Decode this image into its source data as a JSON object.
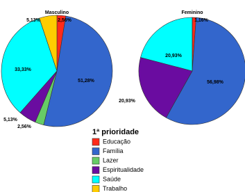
{
  "chart_data": [
    {
      "type": "pie",
      "title": "Masculino",
      "values": [
        2.56,
        51.28,
        2.56,
        5.13,
        33.33,
        5.13
      ],
      "value_labels": [
        "2,56%",
        "51,28%",
        "2,56%",
        "5,13%",
        "33,33%",
        "5,13%"
      ]
    },
    {
      "type": "pie",
      "title": "Feminino",
      "values": [
        1.16,
        56.98,
        0,
        20.93,
        20.93,
        0
      ],
      "value_labels": [
        "1,16%",
        "56,98%",
        null,
        "20,93%",
        "20,93%",
        null
      ]
    }
  ],
  "legend": {
    "title": "1ª prioridade",
    "categories": [
      "Educação",
      "Família",
      "Lazer",
      "Espiritualidade",
      "Saúde",
      "Trabalho"
    ],
    "colors": [
      "#ff2a1a",
      "#3366cc",
      "#66cc66",
      "#6a0ca0",
      "#00ffff",
      "#ffcc00"
    ]
  }
}
